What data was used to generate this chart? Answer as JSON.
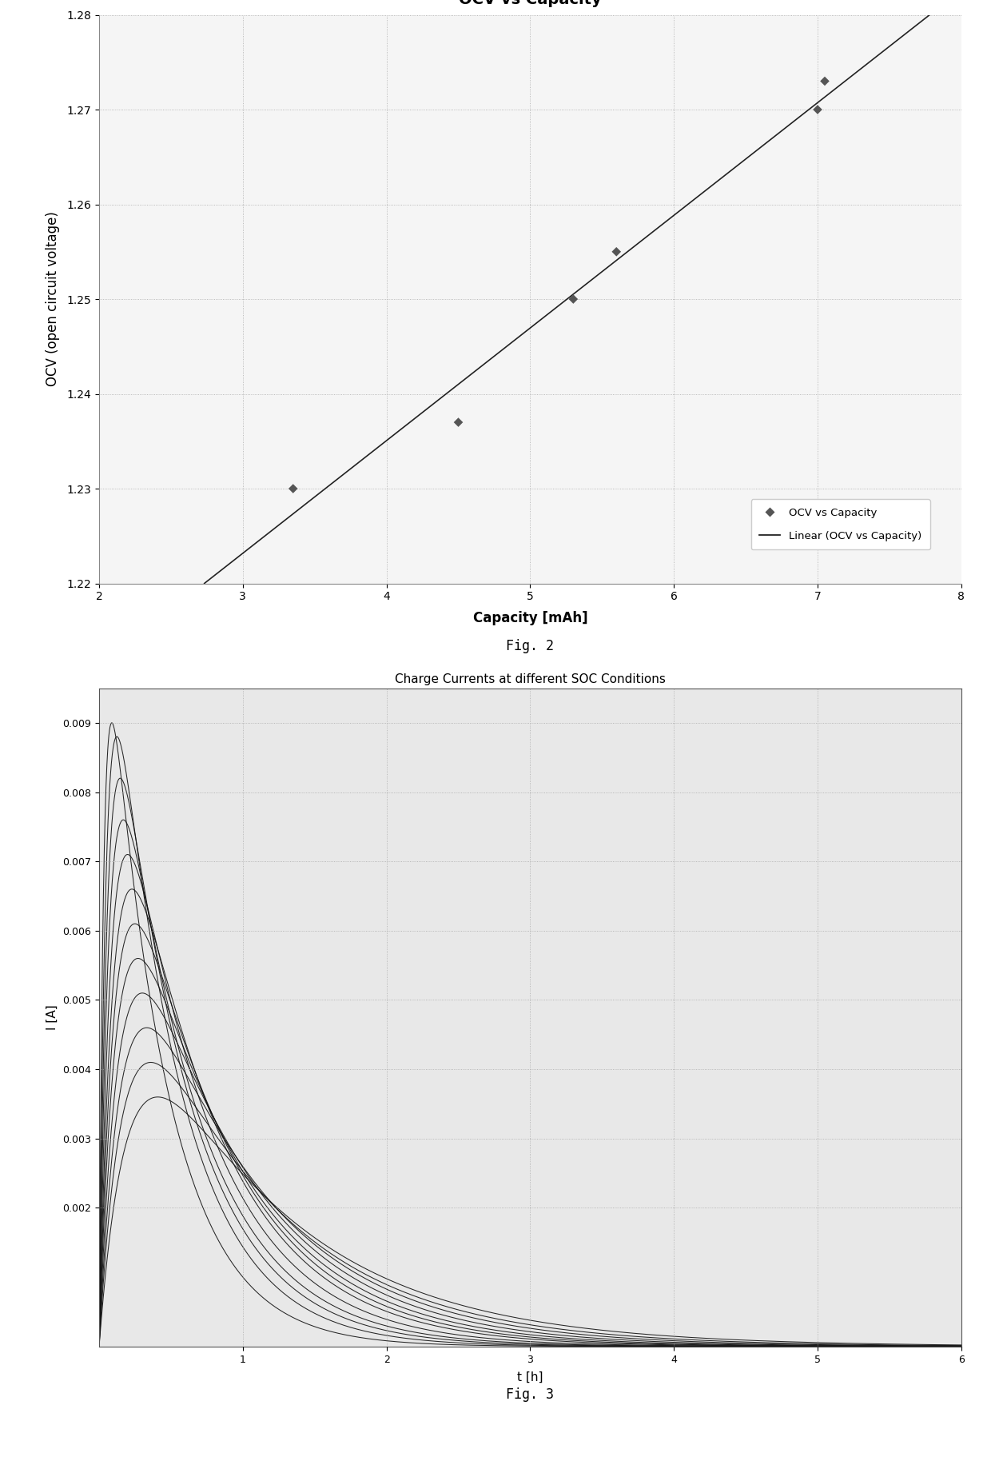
{
  "fig2": {
    "title": "OCV vs Capacity",
    "xlabel": "Capacity [mAh]",
    "ylabel": "OCV (open circuit voltage)",
    "xlim": [
      2,
      8
    ],
    "ylim": [
      1.22,
      1.28
    ],
    "xticks": [
      2,
      3,
      4,
      5,
      6,
      7,
      8
    ],
    "yticks": [
      1.22,
      1.23,
      1.24,
      1.25,
      1.26,
      1.27,
      1.28
    ],
    "scatter_x": [
      3.35,
      4.5,
      5.3,
      5.6,
      7.0,
      7.05
    ],
    "scatter_y": [
      1.23,
      1.237,
      1.25,
      1.255,
      1.27,
      1.273
    ],
    "scatter_color": "#555555",
    "line_color": "#222222",
    "legend_scatter": "OCV vs Capacity",
    "legend_line": "Linear (OCV vs Capacity)",
    "background_color": "#f5f5f5",
    "title_fontsize": 14,
    "label_fontsize": 12,
    "grid_color": "#aaaaaa",
    "grid_style": ":"
  },
  "fig3": {
    "title": "Charge Currents at different SOC Conditions",
    "xlabel": "t [h]",
    "ylabel": "I [A]",
    "xlim": [
      0,
      6
    ],
    "ylim": [
      0,
      0.0095
    ],
    "xticks": [
      1,
      2,
      3,
      4,
      5,
      6
    ],
    "yticks": [
      0.002,
      0.003,
      0.004,
      0.005,
      0.006,
      0.007,
      0.008,
      0.009
    ],
    "line_color": "#111111",
    "background_color": "#e8e8e8",
    "plot_bg": "#f5f5f5",
    "title_fontsize": 11,
    "label_fontsize": 11,
    "grid_color": "#aaaaaa",
    "grid_style": ":",
    "num_curves": 12,
    "t_max": 6.0,
    "initial_currents": [
      0.009,
      0.0088,
      0.0082,
      0.0076,
      0.0071,
      0.0066,
      0.0061,
      0.0056,
      0.0051,
      0.0046,
      0.0041,
      0.0036
    ],
    "peak_times": [
      0.05,
      0.08,
      0.1,
      0.12,
      0.15,
      0.18,
      0.2,
      0.22,
      0.25,
      0.28,
      0.3,
      0.35
    ],
    "decay_rates": [
      2.5,
      2.2,
      2.0,
      1.85,
      1.7,
      1.55,
      1.45,
      1.35,
      1.25,
      1.15,
      1.05,
      0.95
    ]
  },
  "fig2_label": "Fig. 2",
  "fig3_label": "Fig. 3",
  "page_bg": "#ffffff"
}
